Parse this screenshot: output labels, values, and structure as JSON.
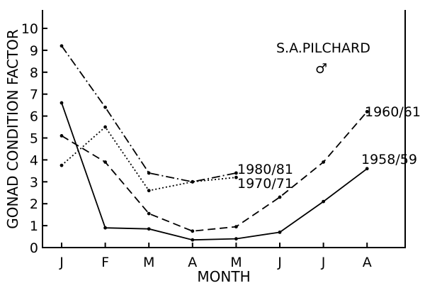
{
  "chart_data": {
    "type": "line",
    "title": "S.A.PILCHARD",
    "subtitle": "♂",
    "xlabel": "MONTH",
    "ylabel": "GONAD CONDITION FACTOR",
    "categories": [
      "J",
      "F",
      "M",
      "A",
      "M",
      "J",
      "J",
      "A"
    ],
    "ylim": [
      0,
      10
    ],
    "yticks": [
      0,
      1,
      2,
      3,
      4,
      5,
      6,
      7,
      8,
      9,
      10
    ],
    "grid": false,
    "series": [
      {
        "name": "1958/59",
        "style": "solid",
        "values": [
          6.6,
          0.9,
          0.85,
          0.35,
          0.4,
          0.7,
          2.1,
          3.6
        ]
      },
      {
        "name": "1960/61",
        "style": "dashed",
        "values": [
          5.1,
          3.9,
          1.55,
          0.75,
          0.95,
          2.3,
          3.9,
          6.2
        ]
      },
      {
        "name": "1980/81",
        "style": "dashdot",
        "values": [
          9.2,
          6.4,
          3.4,
          3.0,
          3.4,
          null,
          null,
          null
        ]
      },
      {
        "name": "1970/71",
        "style": "dotted",
        "values": [
          3.75,
          5.5,
          2.6,
          3.0,
          3.2,
          null,
          null,
          null
        ]
      }
    ]
  }
}
